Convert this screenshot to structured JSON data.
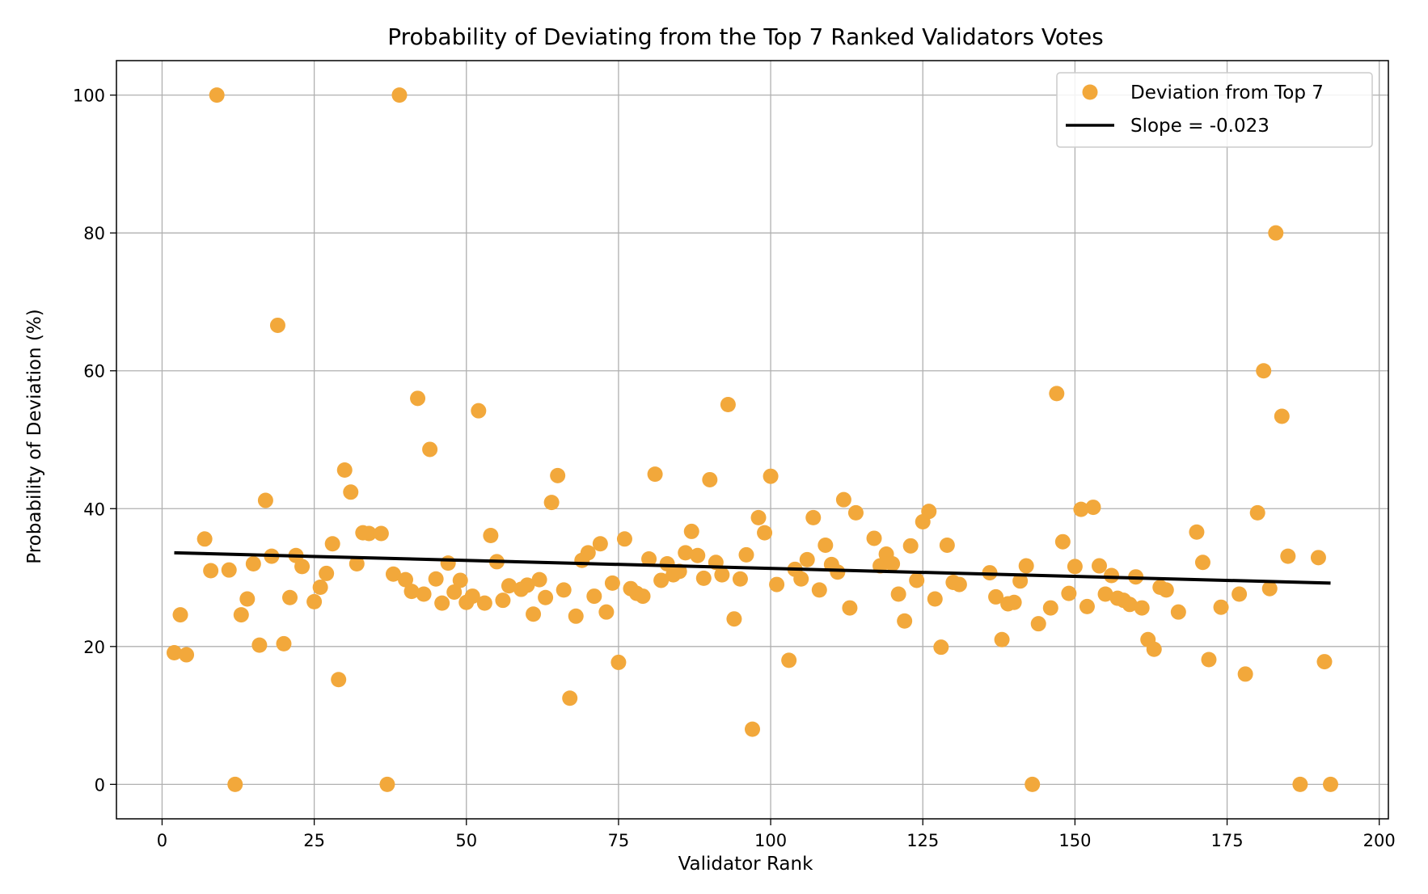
{
  "chart_data": {
    "type": "scatter",
    "title": "Probability of Deviating from the Top 7 Ranked Validators Votes",
    "xlabel": "Validator Rank",
    "ylabel": "Probability of Deviation (%)",
    "xlim": [
      -7.5,
      201.5
    ],
    "ylim": [
      -5,
      105
    ],
    "xticks": [
      0,
      25,
      50,
      75,
      100,
      125,
      150,
      175,
      200
    ],
    "yticks": [
      0,
      20,
      40,
      60,
      80,
      100
    ],
    "grid": true,
    "legend_position": "top-right",
    "colors": {
      "points": "#f2a83b",
      "line": "#000000",
      "grid": "#b0b0b0"
    },
    "series": [
      {
        "name": "Deviation from Top 7",
        "kind": "scatter",
        "points": [
          [
            2,
            19.1
          ],
          [
            3,
            24.6
          ],
          [
            4,
            18.8
          ],
          [
            7,
            35.6
          ],
          [
            8,
            31.0
          ],
          [
            9,
            100
          ],
          [
            11,
            31.1
          ],
          [
            12,
            0
          ],
          [
            13,
            24.6
          ],
          [
            14,
            26.9
          ],
          [
            15,
            32.0
          ],
          [
            16,
            20.2
          ],
          [
            17,
            41.2
          ],
          [
            18,
            33.1
          ],
          [
            19,
            66.6
          ],
          [
            20,
            20.4
          ],
          [
            21,
            27.1
          ],
          [
            22,
            33.2
          ],
          [
            23,
            31.6
          ],
          [
            25,
            26.5
          ],
          [
            26,
            28.6
          ],
          [
            27,
            30.6
          ],
          [
            28,
            34.9
          ],
          [
            29,
            15.2
          ],
          [
            30,
            45.6
          ],
          [
            31,
            42.4
          ],
          [
            32,
            32.0
          ],
          [
            33,
            36.5
          ],
          [
            34,
            36.4
          ],
          [
            36,
            36.4
          ],
          [
            37,
            0
          ],
          [
            38,
            30.5
          ],
          [
            39,
            100
          ],
          [
            40,
            29.7
          ],
          [
            41,
            28.0
          ],
          [
            42,
            56.0
          ],
          [
            43,
            27.6
          ],
          [
            44,
            48.6
          ],
          [
            45,
            29.8
          ],
          [
            46,
            26.3
          ],
          [
            47,
            32.1
          ],
          [
            48,
            27.9
          ],
          [
            49,
            29.6
          ],
          [
            50,
            26.4
          ],
          [
            51,
            27.3
          ],
          [
            52,
            54.2
          ],
          [
            53,
            26.3
          ],
          [
            54,
            36.1
          ],
          [
            55,
            32.3
          ],
          [
            56,
            26.7
          ],
          [
            57,
            28.8
          ],
          [
            59,
            28.3
          ],
          [
            60,
            28.9
          ],
          [
            61,
            24.7
          ],
          [
            62,
            29.7
          ],
          [
            63,
            27.1
          ],
          [
            64,
            40.9
          ],
          [
            65,
            44.8
          ],
          [
            66,
            28.2
          ],
          [
            67,
            12.5
          ],
          [
            68,
            24.4
          ],
          [
            69,
            32.5
          ],
          [
            70,
            33.6
          ],
          [
            71,
            27.3
          ],
          [
            72,
            34.9
          ],
          [
            73,
            25.0
          ],
          [
            74,
            29.2
          ],
          [
            75,
            17.7
          ],
          [
            76,
            35.6
          ],
          [
            77,
            28.4
          ],
          [
            78,
            27.7
          ],
          [
            79,
            27.3
          ],
          [
            80,
            32.7
          ],
          [
            81,
            45.0
          ],
          [
            82,
            29.6
          ],
          [
            83,
            32.0
          ],
          [
            84,
            30.4
          ],
          [
            85,
            30.9
          ],
          [
            86,
            33.6
          ],
          [
            87,
            36.7
          ],
          [
            88,
            33.2
          ],
          [
            89,
            29.9
          ],
          [
            90,
            44.2
          ],
          [
            91,
            32.2
          ],
          [
            92,
            30.4
          ],
          [
            93,
            55.1
          ],
          [
            94,
            24.0
          ],
          [
            95,
            29.8
          ],
          [
            96,
            33.3
          ],
          [
            97,
            8.0
          ],
          [
            98,
            38.7
          ],
          [
            99,
            36.5
          ],
          [
            100,
            44.7
          ],
          [
            101,
            29.0
          ],
          [
            103,
            18.0
          ],
          [
            104,
            31.2
          ],
          [
            105,
            29.8
          ],
          [
            106,
            32.6
          ],
          [
            107,
            38.7
          ],
          [
            108,
            28.2
          ],
          [
            109,
            34.7
          ],
          [
            110,
            31.9
          ],
          [
            111,
            30.8
          ],
          [
            112,
            41.3
          ],
          [
            113,
            25.6
          ],
          [
            114,
            39.4
          ],
          [
            117,
            35.7
          ],
          [
            118,
            31.7
          ],
          [
            119,
            33.4
          ],
          [
            120,
            32.0
          ],
          [
            121,
            27.6
          ],
          [
            122,
            23.7
          ],
          [
            123,
            34.6
          ],
          [
            124,
            29.6
          ],
          [
            125,
            38.1
          ],
          [
            126,
            39.6
          ],
          [
            127,
            26.9
          ],
          [
            128,
            19.9
          ],
          [
            129,
            34.7
          ],
          [
            130,
            29.3
          ],
          [
            131,
            29.0
          ],
          [
            136,
            30.7
          ],
          [
            137,
            27.2
          ],
          [
            138,
            21.0
          ],
          [
            139,
            26.2
          ],
          [
            140,
            26.4
          ],
          [
            141,
            29.5
          ],
          [
            142,
            31.7
          ],
          [
            143,
            0
          ],
          [
            144,
            23.3
          ],
          [
            146,
            25.6
          ],
          [
            147,
            56.7
          ],
          [
            148,
            35.2
          ],
          [
            149,
            27.7
          ],
          [
            150,
            31.6
          ],
          [
            151,
            39.9
          ],
          [
            152,
            25.8
          ],
          [
            153,
            40.2
          ],
          [
            154,
            31.7
          ],
          [
            155,
            27.6
          ],
          [
            156,
            30.3
          ],
          [
            157,
            27.0
          ],
          [
            158,
            26.7
          ],
          [
            159,
            26.1
          ],
          [
            160,
            30.1
          ],
          [
            161,
            25.6
          ],
          [
            162,
            21.0
          ],
          [
            163,
            19.6
          ],
          [
            164,
            28.6
          ],
          [
            165,
            28.2
          ],
          [
            167,
            25.0
          ],
          [
            170,
            36.6
          ],
          [
            171,
            32.2
          ],
          [
            172,
            18.1
          ],
          [
            174,
            25.7
          ],
          [
            177,
            27.6
          ],
          [
            178,
            16.0
          ],
          [
            180,
            39.4
          ],
          [
            181,
            60.0
          ],
          [
            182,
            28.4
          ],
          [
            183,
            80.0
          ],
          [
            184,
            53.4
          ],
          [
            185,
            33.1
          ],
          [
            187,
            0
          ],
          [
            190,
            32.9
          ],
          [
            191,
            17.8
          ],
          [
            192,
            0
          ]
        ]
      },
      {
        "name": "Slope = -0.023",
        "kind": "line",
        "points": [
          [
            2,
            33.6
          ],
          [
            192,
            29.2
          ]
        ]
      }
    ]
  }
}
